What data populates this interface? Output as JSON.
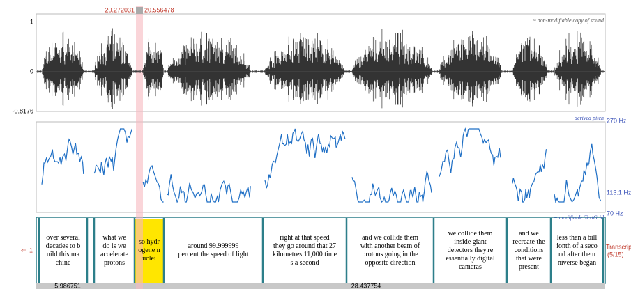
{
  "selection": {
    "start": "20.272031",
    "end": "20.556478"
  },
  "sound": {
    "label": "~ non-modifiable copy of sound",
    "max": "1",
    "zero": "0",
    "min": "-0.8176"
  },
  "pitch": {
    "label": "derived pitch",
    "top": "270 Hz",
    "mid": "113.1 Hz",
    "bottom": "70 Hz"
  },
  "textgrid": {
    "label": "= modifiable TextGrid",
    "tier_number": "1",
    "tier_name": "Transcriptio",
    "tier_count": "(5/15)",
    "intervals": [
      [
        "over several",
        "decades to b",
        "uild this  ma",
        "chine"
      ],
      [
        "what we",
        "do is we",
        "accelerate",
        "protons"
      ],
      [
        "so  hydr",
        "ogene n",
        "uclei"
      ],
      [
        "around 99.999999",
        "percent the speed of light"
      ],
      [
        "right at that speed",
        "they go around that  27",
        "kilometres 11,000  time",
        "s a second"
      ],
      [
        "and we collide them",
        "with another beam of",
        "protons going in the",
        "opposite direction"
      ],
      [
        "we collide them",
        "inside giant",
        "detectors they're",
        "essentially digital",
        "cameras"
      ],
      [
        "and we",
        "recreate the",
        "conditions",
        "that were",
        "present"
      ],
      [
        "less than a bill",
        "ionth of a seco",
        "nd after the u",
        "niverse began"
      ]
    ]
  },
  "footer": {
    "left": "5.986751",
    "right": "28.437754"
  }
}
